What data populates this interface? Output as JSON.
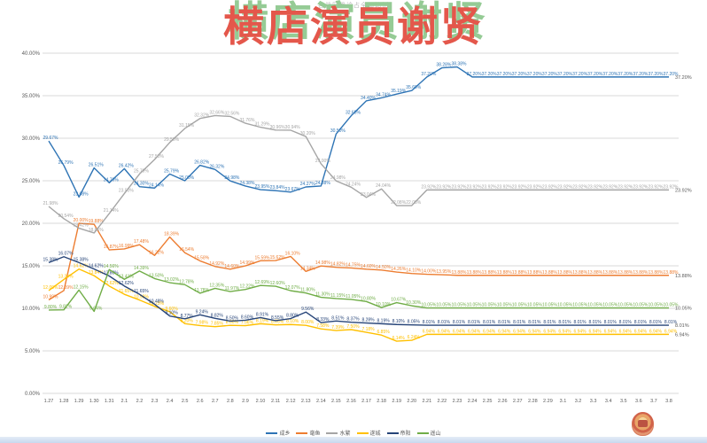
{
  "title": "横店演员谢贤",
  "watermark": "各战区确诊占全国比例",
  "emblem": "national-emblem-icon",
  "colors": {
    "grid": "#d9d9d9",
    "axis_text": "#595959",
    "title_red": "#e4574b",
    "title_green_shadow": "#95cb95",
    "bottom_strip": "#c8d7ee"
  },
  "chart_data": {
    "type": "line",
    "title": "横店演员谢贤",
    "xlabel": "",
    "ylabel": "",
    "ylim": [
      0,
      40
    ],
    "grid": true,
    "legend_position": "bottom",
    "yticks": [
      "0.00%",
      "5.00%",
      "10.00%",
      "15.00%",
      "20.00%",
      "25.00%",
      "30.00%",
      "35.00%",
      "40.00%"
    ],
    "x": [
      "1.27",
      "1.28",
      "1.29",
      "1.30",
      "1.31",
      "2.1",
      "2.2",
      "2.3",
      "2.4",
      "2.5",
      "2.6",
      "2.7",
      "2.8",
      "2.9",
      "2.10",
      "2.11",
      "2.12",
      "2.13",
      "2.14",
      "2.15",
      "2.16",
      "2.17",
      "2.18",
      "2.19",
      "2.20",
      "2.21",
      "2.22",
      "2.23",
      "2.24",
      "2.25",
      "2.26",
      "2.27",
      "2.28",
      "2.29",
      "3.1",
      "3.2",
      "3.3",
      "3.4",
      "3.5",
      "3.6",
      "3.7",
      "3.8"
    ],
    "series": [
      {
        "name": "成乡",
        "color": "#2e74b5",
        "end_label": "37.20%",
        "values": [
          29.67,
          26.79,
          23.08,
          26.51,
          24.76,
          26.42,
          24.3,
          24.14,
          25.79,
          25.0,
          26.82,
          26.32,
          24.98,
          24.38,
          23.95,
          23.84,
          23.67,
          24.27,
          24.38,
          30.5,
          32.65,
          34.4,
          34.74,
          35.19,
          35.6,
          37.2,
          38.28,
          38.38,
          37.2,
          37.2,
          37.2,
          37.2,
          37.2,
          37.2,
          37.2,
          37.2,
          37.2,
          37.2,
          37.2,
          37.2,
          37.2,
          37.2
        ]
      },
      {
        "name": "毫鱼",
        "color": "#ed7d31",
        "end_label": "13.88%",
        "values": [
          10.99,
          12.09,
          20.0,
          19.88,
          16.87,
          16.99,
          17.48,
          16.22,
          18.39,
          16.54,
          15.58,
          14.92,
          14.6,
          14.99,
          15.59,
          15.62,
          16.1,
          14.34,
          14.98,
          14.82,
          14.75,
          14.6,
          14.5,
          14.26,
          14.1,
          14.0,
          13.95,
          13.88,
          13.88,
          13.88,
          13.88,
          13.88,
          13.88,
          13.88,
          13.88,
          13.88,
          13.88,
          13.88,
          13.88,
          13.88,
          13.88,
          13.88
        ]
      },
      {
        "name": "水繁",
        "color": "#a5a5a5",
        "end_label": "23.92%",
        "values": [
          21.98,
          20.54,
          19.42,
          18.86,
          21.14,
          23.5,
          25.79,
          27.5,
          29.5,
          31.15,
          32.32,
          32.66,
          32.56,
          31.76,
          31.29,
          30.96,
          30.94,
          30.2,
          27.0,
          24.98,
          24.24,
          23.04,
          24.04,
          22.08,
          22.08,
          23.92,
          23.92,
          23.92,
          23.92,
          23.92,
          23.92,
          23.92,
          23.92,
          23.92,
          23.92,
          23.92,
          23.92,
          23.92,
          23.92,
          23.92,
          23.92,
          23.92
        ]
      },
      {
        "name": "遂城",
        "color": "#ffc000",
        "end_label": "6.94%",
        "values": [
          12.09,
          13.39,
          14.62,
          13.84,
          12.62,
          11.65,
          10.98,
          10.23,
          9.6,
          8.2,
          7.98,
          7.85,
          8.0,
          7.96,
          8.19,
          8.05,
          8.1,
          8.0,
          7.58,
          7.39,
          7.5,
          7.18,
          6.85,
          6.14,
          6.24,
          6.94,
          6.94,
          6.94,
          6.94,
          6.94,
          6.94,
          6.94,
          6.94,
          6.94,
          6.94,
          6.94,
          6.94,
          6.94,
          6.94,
          6.94,
          6.94,
          6.94
        ]
      },
      {
        "name": "帝阳",
        "color": "#264478",
        "end_label": "8.01%",
        "values": [
          15.38,
          16.07,
          15.38,
          14.62,
          13.8,
          12.62,
          11.65,
          10.48,
          9.1,
          8.77,
          9.24,
          8.82,
          8.5,
          8.6,
          8.91,
          8.55,
          8.8,
          9.56,
          8.33,
          8.51,
          8.37,
          8.28,
          8.19,
          8.1,
          8.05,
          8.01,
          8.01,
          8.01,
          8.01,
          8.01,
          8.01,
          8.01,
          8.01,
          8.01,
          8.01,
          8.01,
          8.01,
          8.01,
          8.01,
          8.01,
          8.01,
          8.01
        ]
      },
      {
        "name": "遥山",
        "color": "#70ad47",
        "end_label": "10.05%",
        "values": [
          9.8,
          9.82,
          12.15,
          9.64,
          14.56,
          13.41,
          14.39,
          13.5,
          13.02,
          12.78,
          11.78,
          12.35,
          11.97,
          12.22,
          12.69,
          12.6,
          12.07,
          11.8,
          11.3,
          11.15,
          11.05,
          10.8,
          10.1,
          10.67,
          10.3,
          10.05,
          10.05,
          10.05,
          10.05,
          10.05,
          10.05,
          10.05,
          10.05,
          10.05,
          10.05,
          10.05,
          10.05,
          10.05,
          10.05,
          10.05,
          10.05,
          10.05
        ]
      }
    ]
  }
}
